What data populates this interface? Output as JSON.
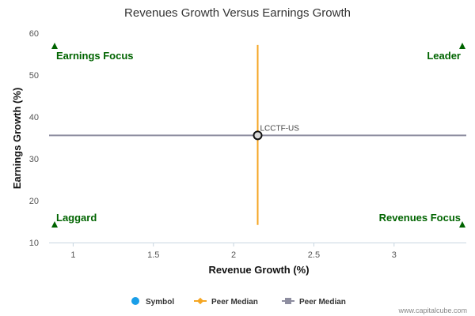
{
  "chart_data": {
    "type": "scatter",
    "title": "Revenues Growth Versus Earnings Growth",
    "xlabel": "Revenue Growth (%)",
    "ylabel": "Earnings Growth (%)",
    "xlim": [
      0.85,
      3.45
    ],
    "ylim": [
      10,
      60
    ],
    "x_ticks": [
      1,
      1.5,
      2,
      2.5,
      3
    ],
    "x_tick_labels": [
      "1",
      "1.5",
      "2",
      "2.5",
      "3"
    ],
    "y_ticks": [
      10,
      20,
      30,
      40,
      50,
      60
    ],
    "y_tick_labels": [
      "10",
      "20",
      "30",
      "40",
      "50",
      "60"
    ],
    "grid": false,
    "series": [
      {
        "name": "Symbol",
        "points": [
          {
            "x": 2.15,
            "y": 35.6,
            "label": "LCCTF-US"
          }
        ],
        "color": "#1a9ee8"
      },
      {
        "name": "Peer Median",
        "orientation": "vertical",
        "x": 2.15,
        "y_range": [
          14.2,
          57.2
        ],
        "color": "#f5a623"
      },
      {
        "name": "Peer Median",
        "orientation": "horizontal",
        "y": 35.6,
        "x_range": [
          0.85,
          3.45
        ],
        "color": "#8e8ea0"
      }
    ],
    "quadrant_labels": {
      "top_left": "Earnings Focus",
      "top_right": "Leader",
      "bottom_left": "Laggard",
      "bottom_right": "Revenues Focus"
    },
    "quadrant_marker_color": "#006400",
    "legend_position": "bottom-center"
  },
  "credit": "www.capitalcube.com"
}
